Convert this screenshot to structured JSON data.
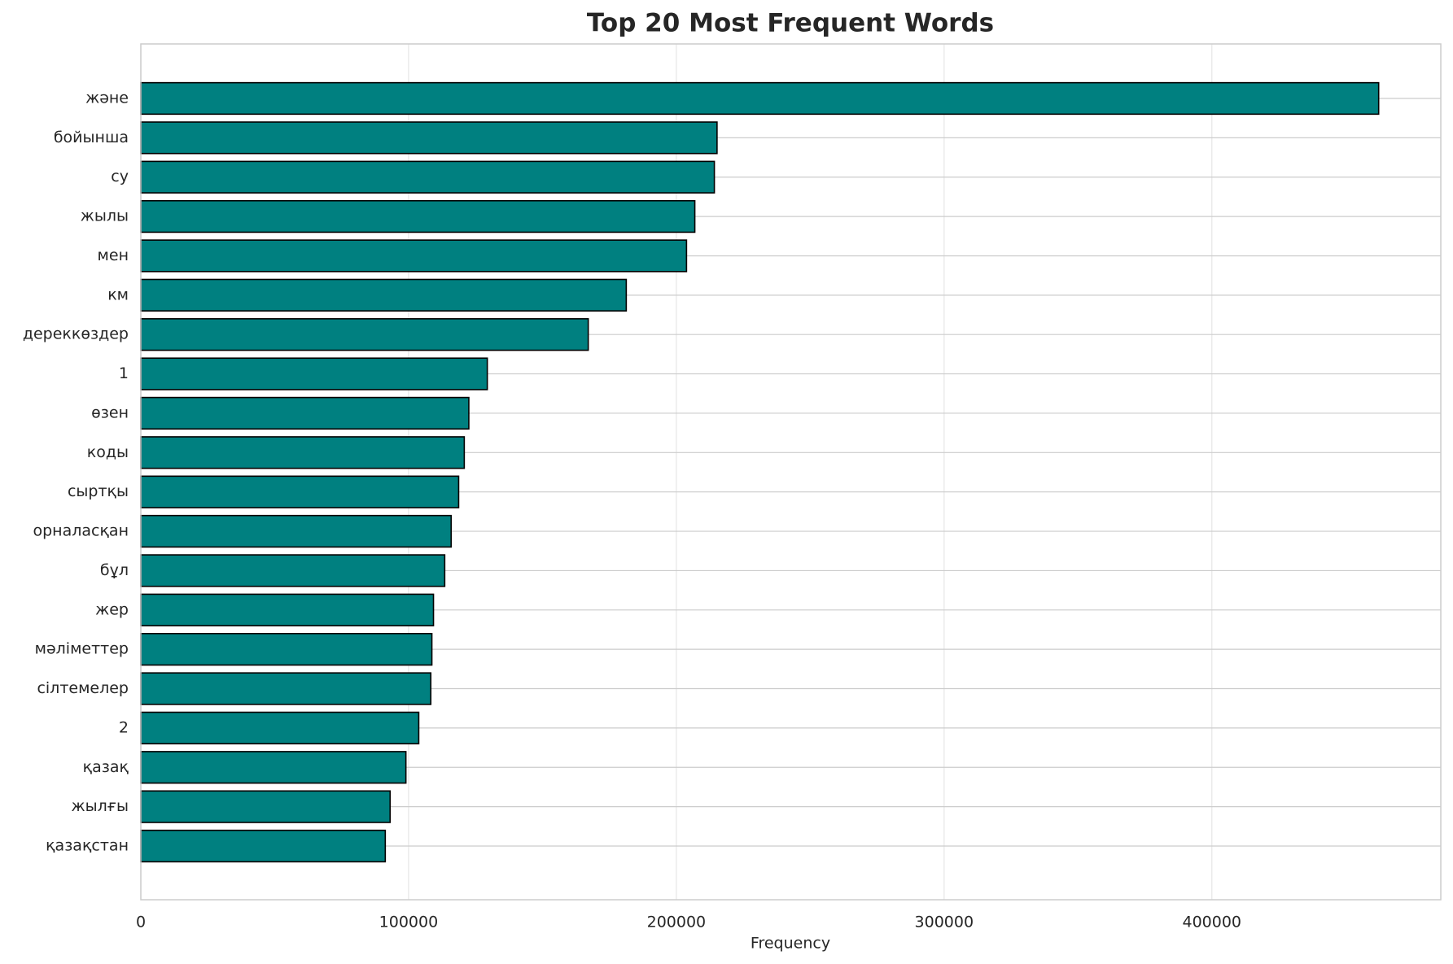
{
  "chart_data": {
    "type": "barh",
    "title": "Top 20 Most Frequent Words",
    "xlabel": "Frequency",
    "categories": [
      "және",
      "бойынша",
      "су",
      "жылы",
      "мен",
      "км",
      "дереккөздер",
      "1",
      "өзен",
      "коды",
      "сыртқы",
      "орналасқан",
      "бұл",
      "жер",
      "мәліметтер",
      "сілтемелер",
      "2",
      "қазақ",
      "жылғы",
      "қазақстан"
    ],
    "values": [
      462300,
      215200,
      214200,
      206900,
      203800,
      181300,
      167100,
      129400,
      122500,
      120800,
      118700,
      115900,
      113500,
      109300,
      108700,
      108300,
      103800,
      99000,
      93100,
      91300
    ],
    "color": "#008080",
    "edgecolor": "#000000",
    "xlim": [
      0,
      485500
    ],
    "xticks": [
      0,
      100000,
      200000,
      300000,
      400000
    ],
    "grid": true
  }
}
